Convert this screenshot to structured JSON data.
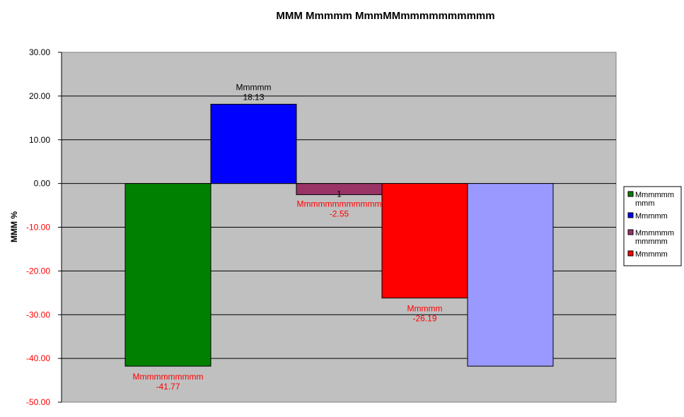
{
  "chart_data": {
    "type": "bar",
    "title": "MMM Mmmmm MmmMMmmmmmmmmmm",
    "ylabel": "MMM %",
    "xlabel": "",
    "ylim": [
      -50,
      30
    ],
    "yticks": [
      "30.00",
      "20.00",
      "10.00",
      "0.00",
      "-10.00",
      "-20.00",
      "-30.00",
      "-40.00",
      "-50.00"
    ],
    "plot_background": "#c0c0c0",
    "grid": true,
    "legend_position": "right",
    "positive_label_color": "#000000",
    "negative_label_color": "#ff0000",
    "bars": [
      {
        "value": -41.77,
        "color": "#008000",
        "label_lines": [
          "Mmmmmmmmmm",
          "-41.77"
        ]
      },
      {
        "value": 18.13,
        "color": "#0000ff",
        "label_lines": [
          "Mmmmm",
          "18.13"
        ]
      },
      {
        "value": -2.55,
        "color": "#993366",
        "label_lines": [
          "1",
          "Mmmmmmmmmmmm",
          "-2.55"
        ]
      },
      {
        "value": -26.19,
        "color": "#ff0000",
        "label_lines": [
          "Mmmmm",
          "-26.19"
        ]
      },
      {
        "value": -41.77,
        "color": "#9999ff",
        "label_lines": []
      }
    ],
    "legend": [
      {
        "lines": [
          "Mmmmmm",
          "mmm"
        ],
        "color": "#008000"
      },
      {
        "lines": [
          "Mmmmm"
        ],
        "color": "#0000ff"
      },
      {
        "lines": [
          "Mmmmmm",
          "mmmmm"
        ],
        "color": "#993366"
      },
      {
        "lines": [
          "Mmmmm"
        ],
        "color": "#ff0000"
      }
    ]
  }
}
